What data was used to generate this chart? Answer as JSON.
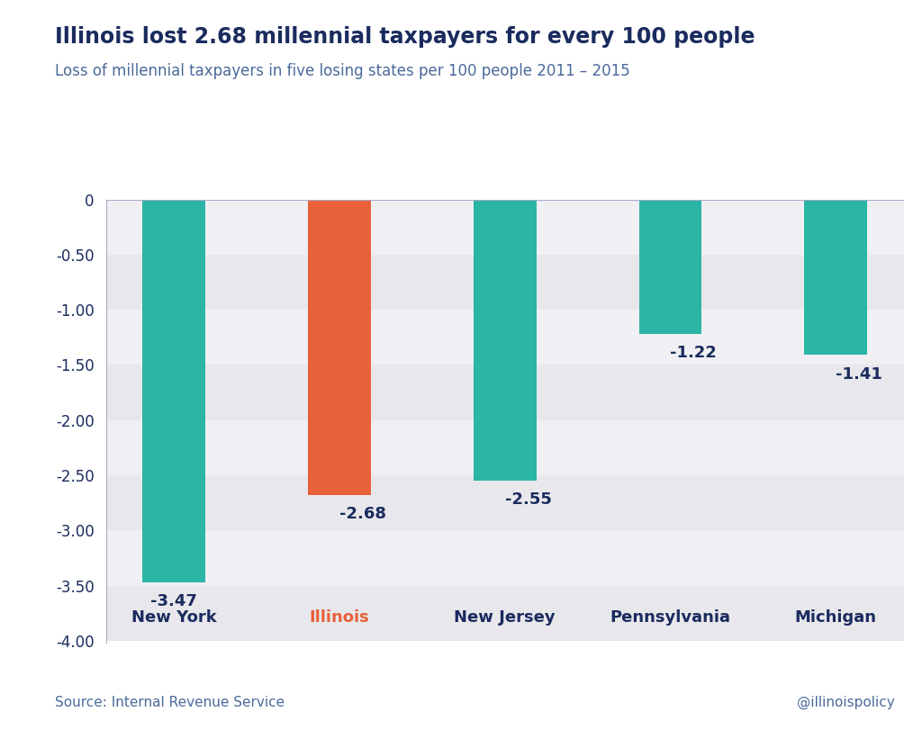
{
  "title": "Illinois lost 2.68 millennial taxpayers for every 100 people",
  "subtitle": "Loss of millennial taxpayers in five losing states per 100 people 2011 – 2015",
  "categories": [
    "New York",
    "Illinois",
    "New Jersey",
    "Pennsylvania",
    "Michigan"
  ],
  "values": [
    -3.47,
    -2.68,
    -2.55,
    -1.22,
    -1.41
  ],
  "bar_colors": [
    "#2ab5a5",
    "#e8613a",
    "#2ab5a5",
    "#2ab5a5",
    "#2ab5a5"
  ],
  "ylim": [
    -4.0,
    0.0
  ],
  "yticks": [
    0,
    -0.5,
    -1.0,
    -1.5,
    -2.0,
    -2.5,
    -3.0,
    -3.5,
    -4.0
  ],
  "ytick_labels": [
    "0",
    "-0.50",
    "-1.00",
    "-1.50",
    "-2.00",
    "-2.50",
    "-3.00",
    "-3.50",
    "-4.00"
  ],
  "source_text": "Source: Internal Revenue Service",
  "attribution_text": "@illinoispolicy",
  "title_color": "#1a2b5e",
  "subtitle_color": "#4a6a9a",
  "label_color": "#1a2b5e",
  "axis_color": "#1a2b5e",
  "tick_color": "#1a2b5e",
  "bg_color": "#ffffff",
  "stripe_dark": "#e8e8ec",
  "stripe_light": "#f0f0f4",
  "bar_width": 0.38,
  "title_fontsize": 17,
  "subtitle_fontsize": 12,
  "tick_fontsize": 12,
  "label_fontsize": 13,
  "source_fontsize": 11,
  "cat_fontsize": 13
}
